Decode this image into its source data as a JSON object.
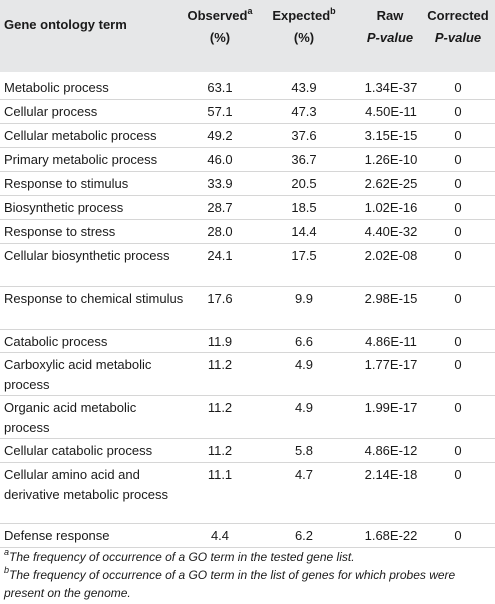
{
  "header": {
    "col_term": "Gene ontology term",
    "col_observed": "Observed",
    "col_observed_sup": "a",
    "col_observed_unit": "(%)",
    "col_expected": "Expected",
    "col_expected_sup": "b",
    "col_expected_unit": "(%)",
    "col_raw_1": "Raw",
    "col_raw_2": "P-value",
    "col_corrected_1": "Corrected",
    "col_corrected_2": "P-value"
  },
  "rows": [
    {
      "term": "Metabolic process",
      "observed": "63.1",
      "expected": "43.9",
      "raw": "1.34E-37",
      "corrected": "0"
    },
    {
      "term": "Cellular process",
      "observed": "57.1",
      "expected": "47.3",
      "raw": "4.50E-11",
      "corrected": "0"
    },
    {
      "term": "Cellular metabolic process",
      "observed": "49.2",
      "expected": "37.6",
      "raw": "3.15E-15",
      "corrected": "0"
    },
    {
      "term": "Primary metabolic process",
      "observed": "46.0",
      "expected": "36.7",
      "raw": "1.26E-10",
      "corrected": "0"
    },
    {
      "term": "Response to stimulus",
      "observed": "33.9",
      "expected": "20.5",
      "raw": "2.62E-25",
      "corrected": "0"
    },
    {
      "term": "Biosynthetic process",
      "observed": "28.7",
      "expected": "18.5",
      "raw": "1.02E-16",
      "corrected": "0"
    },
    {
      "term": "Response to stress",
      "observed": "28.0",
      "expected": "14.4",
      "raw": "4.40E-32",
      "corrected": "0"
    },
    {
      "term": "Cellular biosynthetic process",
      "observed": "24.1",
      "expected": "17.5",
      "raw": "2.02E-08",
      "corrected": "0"
    },
    {
      "term": "Response to chemical stimulus",
      "observed": "17.6",
      "expected": "9.9",
      "raw": "2.98E-15",
      "corrected": "0"
    },
    {
      "term": "Catabolic process",
      "observed": "11.9",
      "expected": "6.6",
      "raw": "4.86E-11",
      "corrected": "0"
    },
    {
      "term": "Carboxylic acid metabolic process",
      "observed": "11.2",
      "expected": "4.9",
      "raw": "1.77E-17",
      "corrected": "0"
    },
    {
      "term": "Organic acid metabolic process",
      "observed": "11.2",
      "expected": "4.9",
      "raw": "1.99E-17",
      "corrected": "0"
    },
    {
      "term": "Cellular catabolic process",
      "observed": "11.2",
      "expected": "5.8",
      "raw": "4.86E-12",
      "corrected": "0"
    },
    {
      "term": "Cellular amino acid and derivative metabolic process",
      "observed": "11.1",
      "expected": "4.7",
      "raw": "2.14E-18",
      "corrected": "0"
    },
    {
      "term": "Defense response",
      "observed": "4.4",
      "expected": "6.2",
      "raw": "1.68E-22",
      "corrected": "0"
    }
  ],
  "footnotes": {
    "a_mark": "a",
    "a_text": "The frequency of occurrence of a GO term in the tested gene list.",
    "b_mark": "b",
    "b_text": "The frequency of occurrence of a GO term in the list of genes for which probes were present on the genome."
  }
}
